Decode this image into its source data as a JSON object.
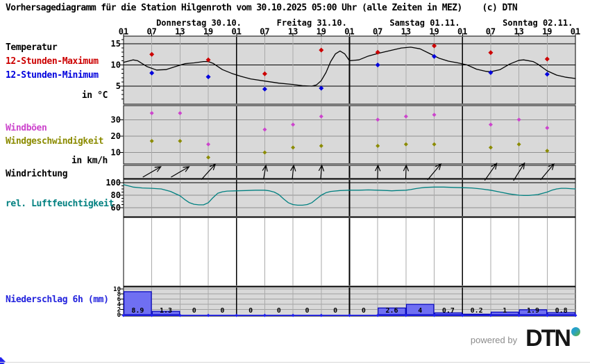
{
  "title": "Vorhersagediagramm für die Station Hilgenroth vom 30.10.2025 05:00 Uhr (alle Zeiten in MEZ)    (c) DTN",
  "station": "Hilgenroth",
  "labels": {
    "temperature": "Temperatur",
    "max12h": "12-Stunden-Maximum",
    "min12h": "12-Stunden-Minimum",
    "temp_unit": "in °C",
    "gusts": "Windböen",
    "wind_speed": "Windgeschwindigkeit",
    "wind_unit": "in km/h",
    "wind_direction": "Windrichtung",
    "humidity": "rel. Luftfeuchtigkeit",
    "precipitation": "Niederschlag 6h (mm)"
  },
  "colors": {
    "max": "#cc0000",
    "min": "#0000dd",
    "gusts": "#cc44cc",
    "wind_speed": "#8b8b00",
    "humidity": "#008080",
    "precip_text": "#2222dd",
    "bar_fill": "#6f6ff2",
    "bar_stroke": "#0000bb",
    "baseline": "#2222ee",
    "panel_bg": "#d9d9d9",
    "grid_minor": "#aaaaaa",
    "grid_day": "#000000",
    "curve": "#000000"
  },
  "time_axis": {
    "day_labels": [
      "Donnerstag 30.10.",
      "Freitag 31.10.",
      "Samstag 01.11.",
      "Sonntag 02.11."
    ],
    "tick_labels": [
      "01",
      "07",
      "13",
      "19",
      "01",
      "07",
      "13",
      "19",
      "01",
      "07",
      "13",
      "19",
      "01",
      "07",
      "13",
      "19",
      "01"
    ],
    "hours_total": 96
  },
  "chart_data": [
    {
      "type": "line",
      "title": "Temperatur",
      "ylabel": "in °C",
      "yticks": [
        5,
        10,
        15
      ],
      "ylim": [
        1.5,
        16.8
      ],
      "series": [
        {
          "name": "Temperatur",
          "x": [
            0,
            2,
            3,
            5,
            7,
            9,
            11,
            13,
            15,
            17,
            18,
            19,
            21,
            23,
            25,
            27,
            30,
            33,
            36,
            38,
            40,
            41,
            42,
            43,
            44,
            45,
            46,
            47,
            48,
            50,
            52,
            54,
            57,
            59,
            61,
            63,
            65,
            67,
            69,
            71,
            73,
            75,
            77,
            78,
            80,
            82,
            84,
            85,
            87,
            88,
            90,
            92,
            94,
            96
          ],
          "values": [
            10.6,
            11.2,
            11.0,
            9.6,
            8.8,
            8.9,
            9.6,
            10.3,
            10.5,
            10.8,
            10.8,
            10.4,
            8.9,
            8.0,
            7.3,
            6.7,
            6.2,
            5.7,
            5.4,
            5.1,
            5.0,
            5.3,
            6.3,
            8.2,
            10.8,
            12.6,
            13.3,
            12.6,
            11.0,
            11.2,
            12.1,
            12.7,
            13.5,
            14.0,
            14.2,
            13.8,
            12.7,
            11.6,
            10.9,
            10.5,
            10.0,
            9.0,
            8.5,
            8.4,
            8.9,
            10.2,
            11.1,
            11.2,
            10.8,
            10.2,
            8.6,
            7.6,
            7.1,
            6.8
          ]
        },
        {
          "name": "12-Stunden-Maximum",
          "marker": "diamond",
          "x": [
            6,
            18,
            30,
            42,
            54,
            66,
            78,
            90
          ],
          "values": [
            12.5,
            11.2,
            7.9,
            13.5,
            13.0,
            14.5,
            12.9,
            11.4
          ]
        },
        {
          "name": "12-Stunden-Minimum",
          "marker": "diamond",
          "x": [
            6,
            18,
            30,
            42,
            54,
            66,
            78,
            90
          ],
          "values": [
            8.1,
            7.2,
            4.3,
            4.5,
            10.0,
            12.0,
            8.2,
            7.8
          ]
        }
      ]
    },
    {
      "type": "scatter",
      "title": "Wind",
      "ylabel": "in km/h",
      "yticks": [
        10,
        20,
        30
      ],
      "ylim": [
        3,
        38
      ],
      "series": [
        {
          "name": "Windböen",
          "x": [
            6,
            12,
            18,
            30,
            36,
            42,
            54,
            60,
            66,
            78,
            84,
            90
          ],
          "values": [
            34,
            34,
            15,
            24,
            27,
            32,
            30,
            32,
            33,
            27,
            30,
            25
          ]
        },
        {
          "name": "Windgeschwindigkeit",
          "x": [
            6,
            12,
            18,
            30,
            36,
            42,
            54,
            60,
            66,
            78,
            84,
            90
          ],
          "values": [
            17,
            17,
            7,
            10,
            13,
            14,
            14,
            15,
            15,
            13,
            15,
            11
          ]
        }
      ]
    },
    {
      "type": "wind-direction",
      "title": "Windrichtung",
      "x": [
        6,
        12,
        18,
        30,
        36,
        42,
        54,
        60,
        66,
        78,
        84,
        90
      ],
      "bearings_deg": [
        60,
        60,
        42,
        10,
        6,
        5,
        2,
        2,
        40,
        35,
        32,
        40
      ]
    },
    {
      "type": "line",
      "title": "rel. Luftfeuchtigkeit",
      "ylabel": "%",
      "yticks": [
        60,
        80,
        100
      ],
      "ylim": [
        50,
        105
      ],
      "series": [
        {
          "name": "rel. Luftfeuchtigkeit",
          "x": [
            0,
            2,
            4,
            6,
            8,
            10,
            12,
            13,
            14,
            15,
            16,
            17,
            18,
            19,
            20,
            21,
            22,
            24,
            26,
            28,
            30,
            31,
            32,
            33,
            34,
            35,
            36,
            37,
            38,
            39,
            40,
            41,
            42,
            43,
            44,
            46,
            48,
            50,
            52,
            54,
            56,
            57,
            58,
            60,
            61,
            62,
            63,
            64,
            66,
            68,
            70,
            72,
            74,
            76,
            78,
            80,
            82,
            84,
            85,
            86,
            88,
            90,
            91,
            92,
            93,
            94,
            95,
            96
          ],
          "values": [
            97,
            93,
            91.5,
            91,
            90,
            86,
            79,
            73,
            68,
            65.5,
            64.5,
            64.5,
            68,
            76,
            83,
            85.5,
            86.5,
            87,
            87.5,
            88,
            88,
            87,
            85,
            81,
            74,
            68,
            65,
            64,
            64,
            65,
            68,
            74,
            80,
            84,
            86,
            87.5,
            88,
            88,
            88.5,
            88,
            87.5,
            87,
            87.5,
            88,
            89,
            90.5,
            91.5,
            92.5,
            93,
            93,
            92.5,
            92,
            91.5,
            90,
            88,
            85,
            82,
            80,
            79.5,
            79.5,
            81,
            85,
            88,
            90,
            91,
            91,
            90.5,
            90
          ]
        }
      ]
    },
    {
      "type": "bar",
      "title": "Niederschlag 6h (mm)",
      "yticks": [
        0,
        2,
        4,
        6,
        8,
        10
      ],
      "ylim": [
        0,
        11
      ],
      "block_hours": 6,
      "values": [
        8.9,
        1.3,
        0,
        0,
        0,
        0,
        0,
        0,
        0,
        2.6,
        4,
        0.7,
        0.2,
        1,
        1.9,
        0.8
      ],
      "value_labels": [
        "8.9",
        "1.3",
        "0",
        "0",
        "0",
        "0",
        "0",
        "0",
        "0",
        "2.6",
        "4",
        "0.7",
        "0.2",
        "1",
        "1.9",
        "0.8"
      ]
    }
  ],
  "logo": {
    "powered_by": "powered by",
    "brand": "DTN"
  }
}
